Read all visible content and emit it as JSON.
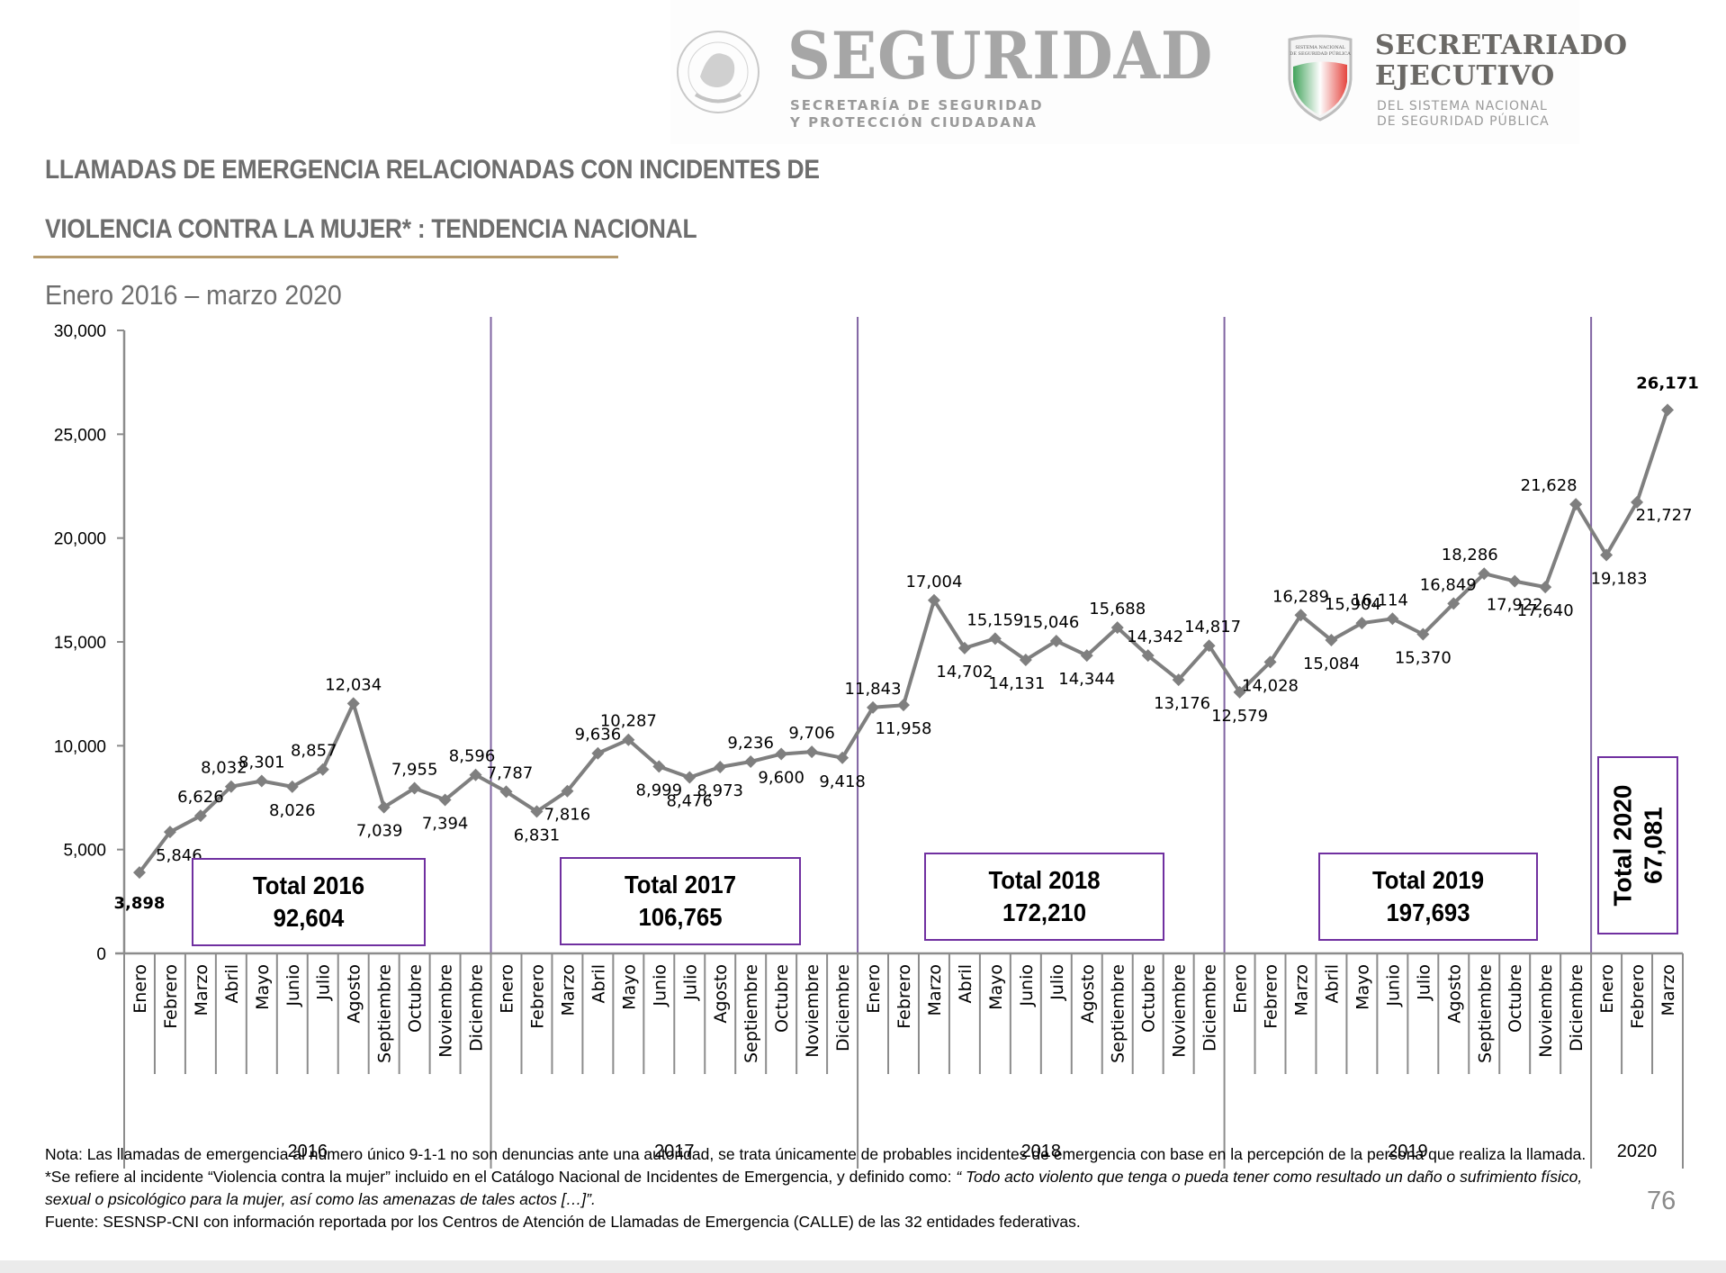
{
  "header": {
    "seguridad_logo": {
      "seal_text": "ESTADOS UNIDOS MEXICANOS",
      "word": "SEGURIDAD",
      "sub_line_1": "SECRETARÍA DE SEGURIDAD",
      "sub_line_2": "Y PROTECCIÓN CIUDADANA"
    },
    "sesnsp_logo": {
      "shield_text_1": "SISTEMA NACIONAL",
      "shield_text_2": "DE SEGURIDAD PÚBLICA",
      "word_1": "SECRETARIADO",
      "word_2": "EJECUTIVO",
      "sub_line_1": "DEL SISTEMA NACIONAL",
      "sub_line_2": "DE SEGURIDAD PÚBLICA"
    }
  },
  "title": {
    "line_1": "LLAMADAS DE EMERGENCIA RELACIONADAS CON INCIDENTES DE",
    "line_2": "VIOLENCIA CONTRA LA MUJER* : TENDENCIA NACIONAL",
    "subtitle": "Enero 2016 – marzo 2020"
  },
  "colors": {
    "line": "#7f7f7f",
    "separator": "#8064a2",
    "box_border": "#7030a0",
    "min_label": "#4caf50",
    "max_label": "#e5312b",
    "title_rule": "#b59a6c"
  },
  "chart_data": {
    "type": "line",
    "title": "LLAMADAS DE EMERGENCIA RELACIONADAS CON INCIDENTES DE VIOLENCIA CONTRA LA MUJER* : TENDENCIA NACIONAL",
    "subtitle": "Enero 2016 – marzo 2020",
    "xlabel": "",
    "ylabel": "",
    "ylim": [
      0,
      30000
    ],
    "yticks": [
      0,
      5000,
      10000,
      15000,
      20000,
      25000,
      30000
    ],
    "ytick_labels": [
      "0",
      "5,000",
      "10,000",
      "15,000",
      "20,000",
      "25,000",
      "30,000"
    ],
    "grid": false,
    "legend": "none",
    "years": [
      {
        "year": "2016",
        "months": [
          "Enero",
          "Febrero",
          "Marzo",
          "Abril",
          "Mayo",
          "Junio",
          "Julio",
          "Agosto",
          "Septiembre",
          "Octubre",
          "Noviembre",
          "Diciembre"
        ],
        "values": [
          3898,
          5846,
          6626,
          8032,
          8301,
          8026,
          8857,
          12034,
          7039,
          7955,
          7394,
          8596
        ],
        "total_label": "Total 2016",
        "total_value": "92,604"
      },
      {
        "year": "2017",
        "months": [
          "Enero",
          "Febrero",
          "Marzo",
          "Abril",
          "Mayo",
          "Junio",
          "Julio",
          "Agosto",
          "Septiembre",
          "Octubre",
          "Noviembre",
          "Diciembre"
        ],
        "values": [
          7787,
          6831,
          7816,
          9636,
          10287,
          8999,
          8476,
          8973,
          9236,
          9600,
          9706,
          9418
        ],
        "total_label": "Total 2017",
        "total_value": "106,765"
      },
      {
        "year": "2018",
        "months": [
          "Enero",
          "Febrero",
          "Marzo",
          "Abril",
          "Mayo",
          "Junio",
          "Julio",
          "Agosto",
          "Septiembre",
          "Octubre",
          "Noviembre",
          "Diciembre"
        ],
        "values": [
          11843,
          11958,
          17004,
          14702,
          15159,
          14131,
          15046,
          14344,
          15688,
          14342,
          13176,
          14817
        ],
        "total_label": "Total 2018",
        "total_value": "172,210"
      },
      {
        "year": "2019",
        "months": [
          "Enero",
          "Febrero",
          "Marzo",
          "Abril",
          "Mayo",
          "Junio",
          "Julio",
          "Agosto",
          "Septiembre",
          "Octubre",
          "Noviembre",
          "Diciembre"
        ],
        "values": [
          12579,
          14028,
          16289,
          15084,
          15904,
          16114,
          15370,
          16849,
          18286,
          17922,
          17640,
          21628
        ],
        "total_label": "Total 2019",
        "total_value": "197,693"
      },
      {
        "year": "2020",
        "months": [
          "Enero",
          "Febrero",
          "Marzo"
        ],
        "values": [
          19183,
          21727,
          26171
        ],
        "total_label": "Total 2020",
        "total_value": "67,081"
      }
    ],
    "annotations": [
      {
        "text": "3,898",
        "note": "minimum, shown in green"
      },
      {
        "text": "26,171",
        "note": "maximum, shown in red"
      }
    ]
  },
  "notes": {
    "nota": "Nota: Las llamadas de emergencia al número único 9-1-1 no son denuncias ante una autoridad, se trata únicamente de probables incidentes de emergencia con base en la percepción de la persona que realiza la llamada.",
    "def_prefix": "*Se refiere al incidente “Violencia contra la mujer” incluido en el Catálogo Nacional de Incidentes de Emergencia, y definido como: ",
    "def_quote": "“ Todo acto violento que tenga o pueda tener como resultado un daño o sufrimiento físico, sexual o psicológico para la mujer, así como las amenazas de tales actos […]”.",
    "fuente": "Fuente: SESNSP-CNI con información reportada por los Centros de Atención de Llamadas de Emergencia (CALLE) de las 32 entidades federativas."
  },
  "page_number": "76"
}
